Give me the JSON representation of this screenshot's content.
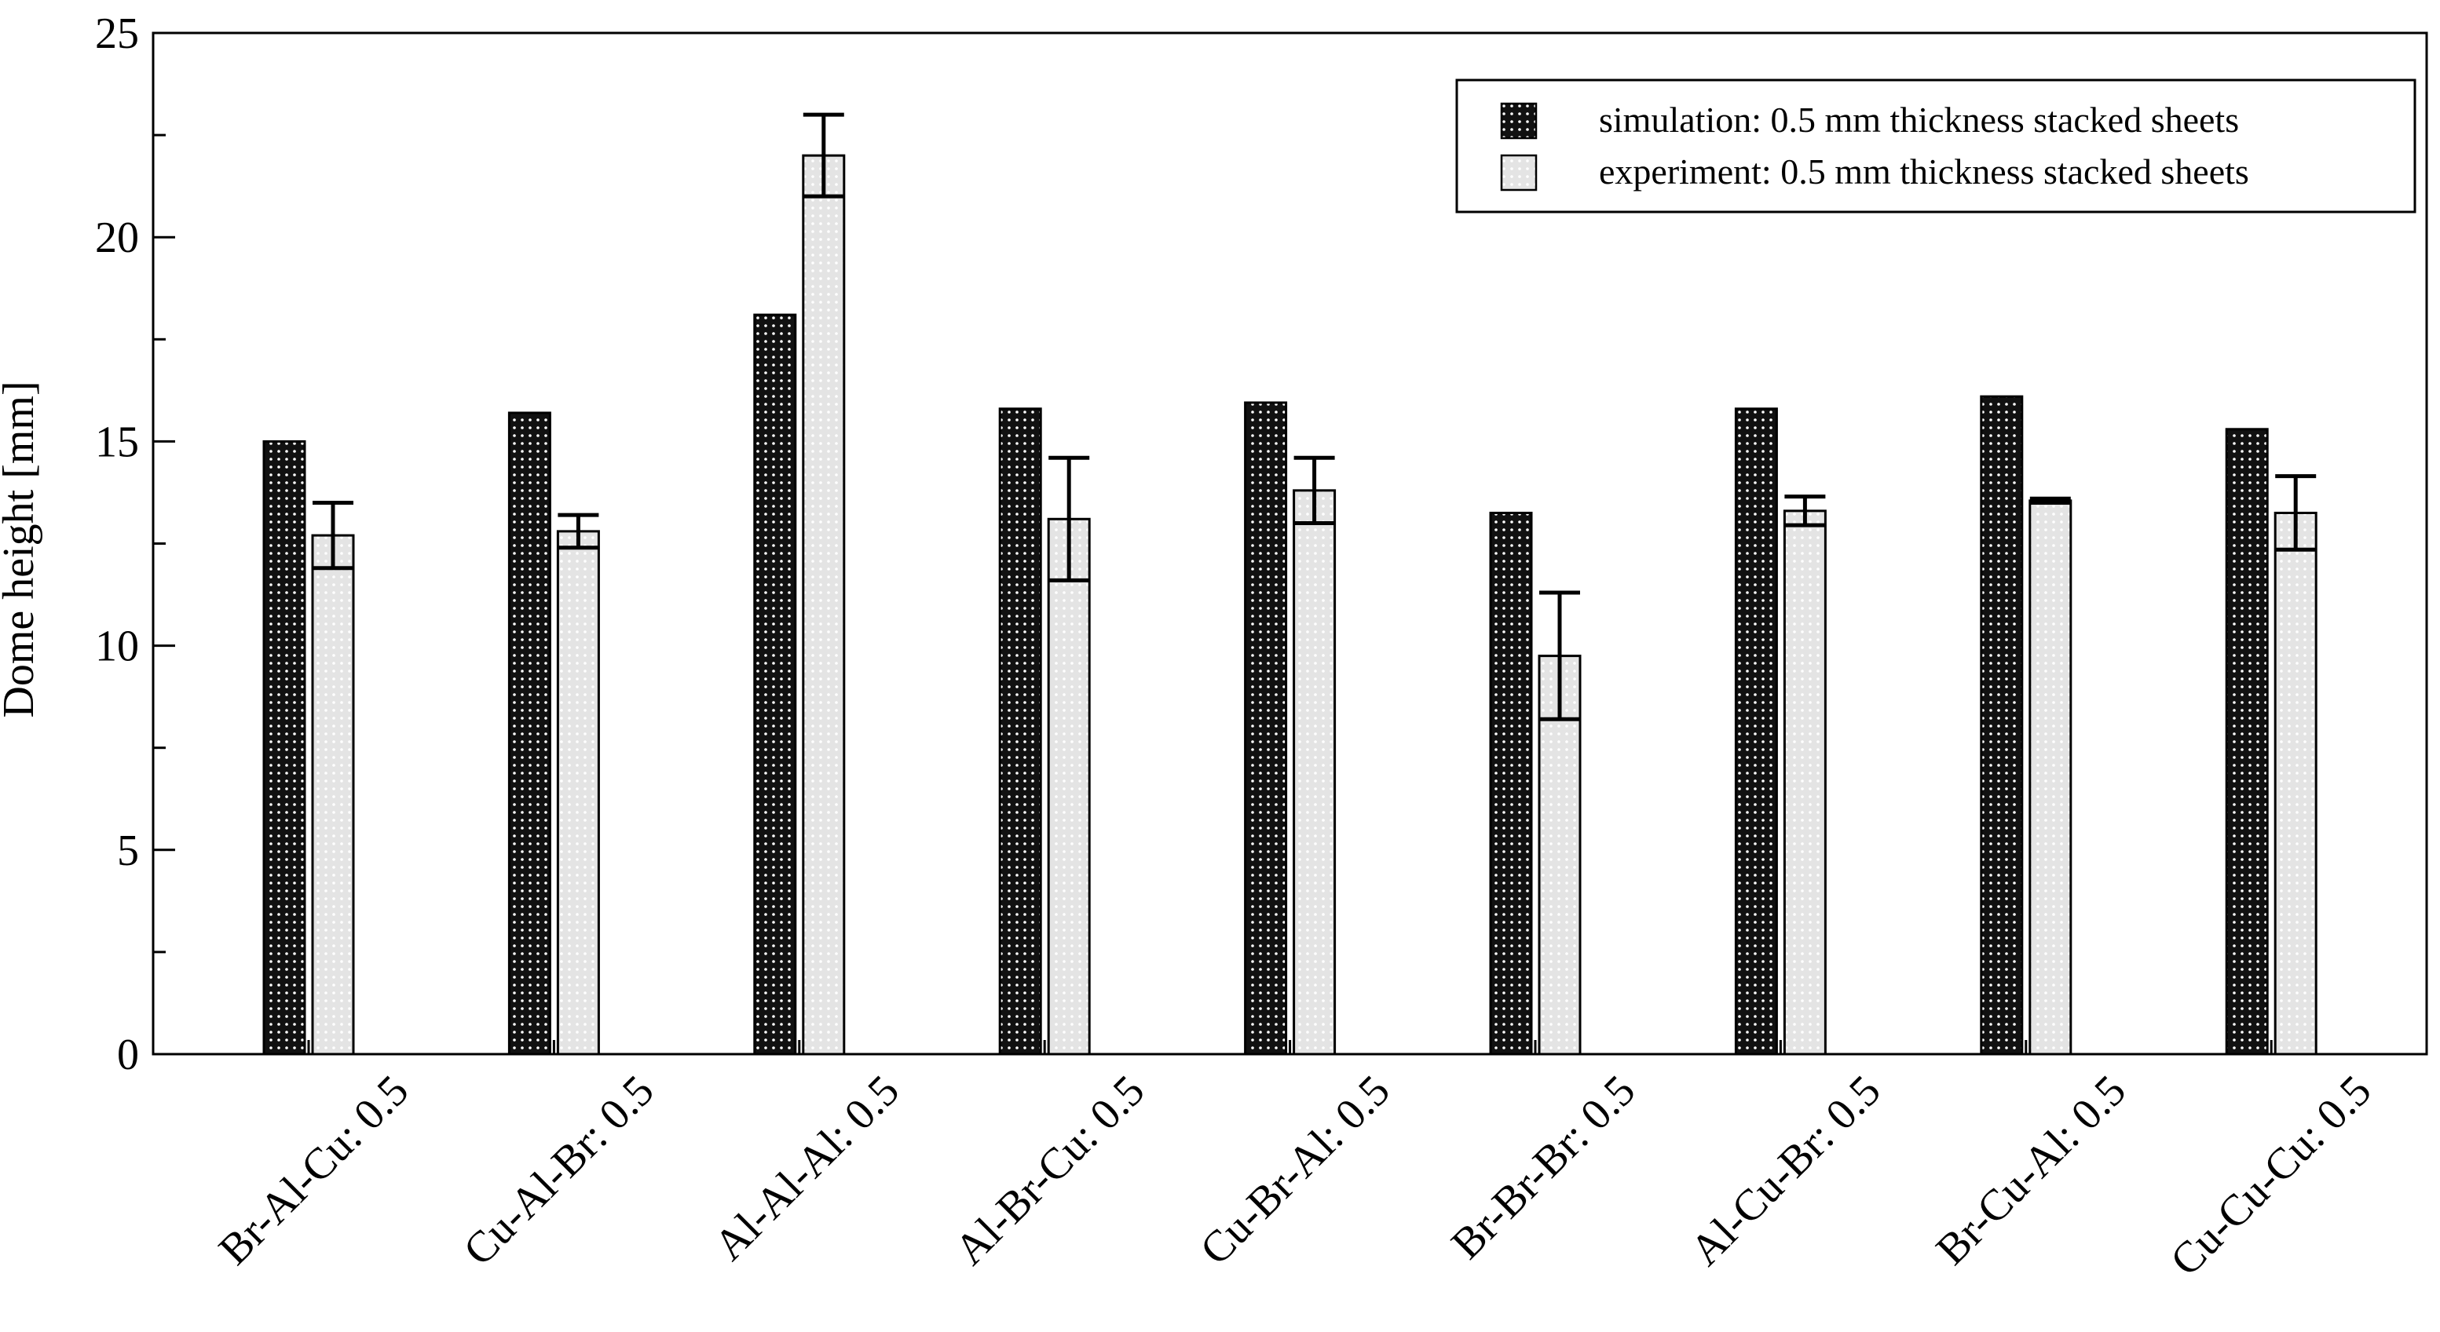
{
  "chart_data": {
    "type": "bar",
    "title": "",
    "xlabel": "",
    "ylabel": "Dome height [mm]",
    "ylim": [
      0,
      25
    ],
    "yticks": [
      "0",
      "5",
      "10",
      "15",
      "20",
      "25"
    ],
    "grid": false,
    "legend_position": "top-right",
    "categories": [
      "Br-Al-Cu: 0.5",
      "Cu-Al-Br: 0.5",
      "Al-Al-Al: 0.5",
      "Al-Br-Cu: 0.5",
      "Cu-Br-Al: 0.5",
      "Br-Br-Br: 0.5",
      "Al-Cu-Br: 0.5",
      "Br-Cu-Al: 0.5",
      "Cu-Cu-Cu: 0.5"
    ],
    "series": [
      {
        "name": "simulation: 0.5 mm thickness stacked sheets",
        "color": "#111111",
        "dot_color": "#ffffff",
        "values": [
          15.0,
          15.7,
          18.1,
          15.8,
          15.95,
          13.25,
          15.8,
          16.1,
          15.3
        ]
      },
      {
        "name": "experiment: 0.5 mm thickness stacked sheets",
        "color": "#e4e4e4",
        "dot_color": "#ffffff",
        "values": [
          12.7,
          12.8,
          22.0,
          13.1,
          13.8,
          9.75,
          13.3,
          13.55,
          13.25
        ],
        "errors": [
          0.8,
          0.4,
          1.0,
          1.5,
          0.8,
          1.55,
          0.35,
          0.05,
          0.9
        ]
      }
    ]
  }
}
